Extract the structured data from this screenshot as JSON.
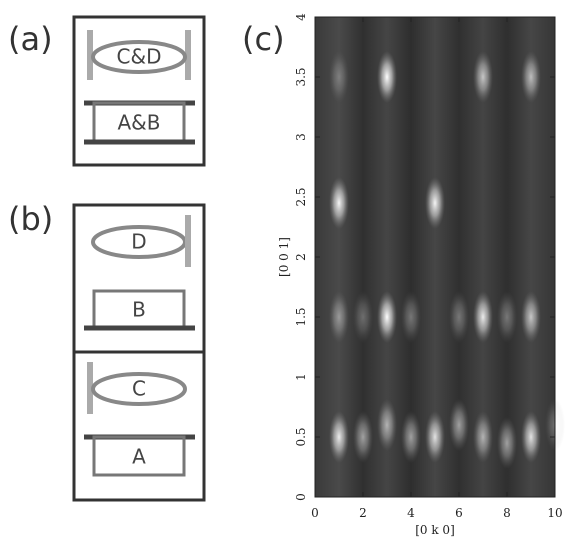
{
  "labels": {
    "a": "(a)",
    "b": "(b)",
    "c": "(c)"
  },
  "diagram_a": {
    "top": "C&D",
    "bottom": "A&B"
  },
  "diagram_b": {
    "upper": {
      "top": "D",
      "bottom": "B"
    },
    "lower": {
      "top": "C",
      "bottom": "A"
    }
  },
  "chart_data": {
    "type": "heatmap",
    "xlabel": "[0 k 0]",
    "ylabel": "[0 0 1]",
    "xlim": [
      0,
      10
    ],
    "ylim": [
      0,
      4
    ],
    "xticks": [
      0,
      2,
      4,
      6,
      8,
      10
    ],
    "yticks": [
      0,
      0.5,
      1,
      1.5,
      2,
      2.5,
      3,
      3.5,
      4
    ],
    "spots": {
      "x": [
        3,
        7,
        9,
        1,
        1,
        5,
        3,
        7,
        9,
        1,
        2,
        4,
        6,
        8,
        1,
        2,
        3,
        4,
        5,
        6,
        7,
        8,
        9,
        10
      ],
      "y": [
        3.5,
        3.5,
        3.5,
        3.5,
        2.45,
        2.45,
        1.5,
        1.5,
        1.5,
        1.5,
        1.5,
        1.5,
        1.5,
        1.5,
        0.5,
        0.5,
        0.6,
        0.5,
        0.5,
        0.6,
        0.5,
        0.45,
        0.5,
        0.6
      ],
      "values": [
        1,
        0.7,
        0.65,
        0.3,
        0.95,
        0.95,
        1,
        0.9,
        0.7,
        0.45,
        0.3,
        0.35,
        0.35,
        0.35,
        0.9,
        0.55,
        0.6,
        0.55,
        0.85,
        0.55,
        0.6,
        0.55,
        0.85,
        0.3
      ]
    }
  }
}
